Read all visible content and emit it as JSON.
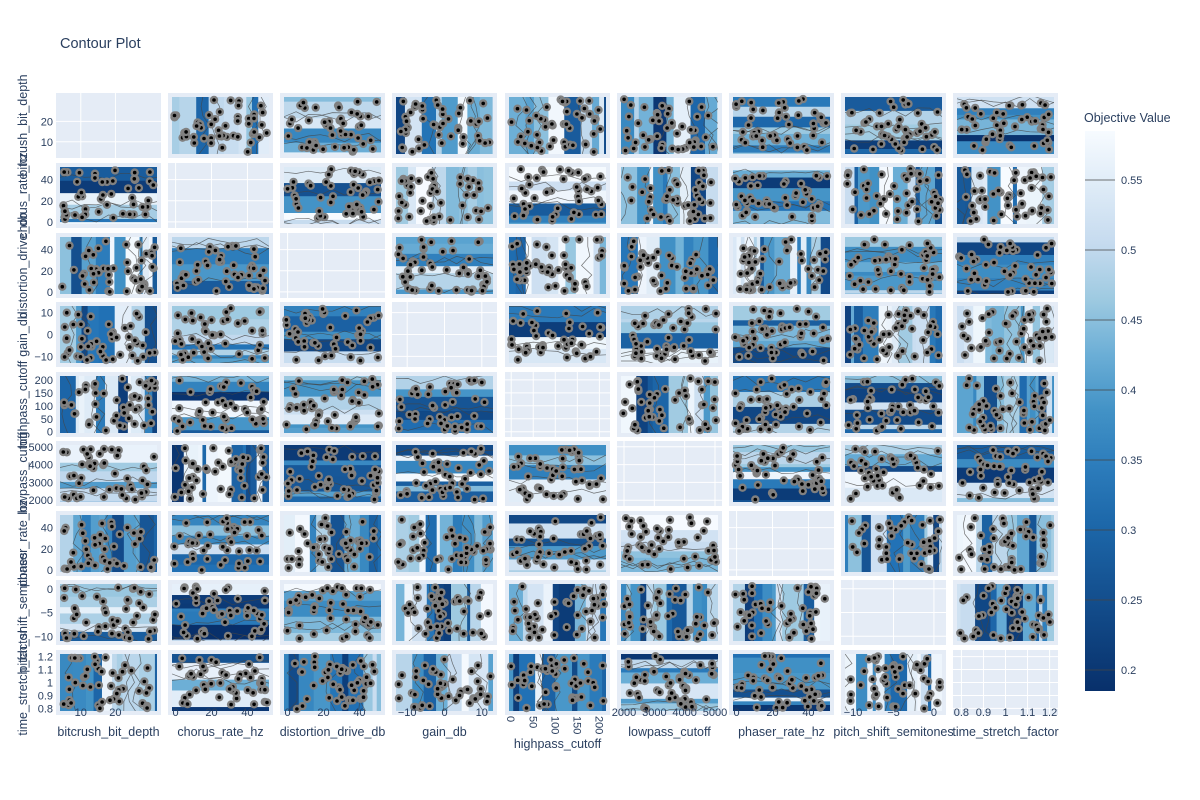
{
  "chart_data": {
    "type": "contour",
    "title": "Contour Plot",
    "params": [
      {
        "name": "bitcrush_bit_depth",
        "range": [
          4,
          32
        ],
        "xticks": [
          "10",
          "20"
        ],
        "xtick_values": [
          10,
          20
        ],
        "yticks": [
          "10",
          "20"
        ],
        "ytick_values": [
          10,
          20
        ]
      },
      {
        "name": "chorus_rate_hz",
        "range": [
          -2,
          52
        ],
        "xticks": [
          "0",
          "20",
          "40"
        ],
        "xtick_values": [
          0,
          20,
          40
        ],
        "yticks": [
          "0",
          "20",
          "40"
        ],
        "ytick_values": [
          0,
          20,
          40
        ]
      },
      {
        "name": "distortion_drive_db",
        "range": [
          -2,
          52
        ],
        "xticks": [
          "0",
          "20",
          "40"
        ],
        "xtick_values": [
          0,
          20,
          40
        ],
        "yticks": [
          "0",
          "20",
          "40"
        ],
        "ytick_values": [
          0,
          20,
          40
        ]
      },
      {
        "name": "gain_db",
        "range": [
          -13,
          13
        ],
        "xticks": [
          "−10",
          "0",
          "10"
        ],
        "xtick_values": [
          -10,
          0,
          10
        ],
        "yticks": [
          "−10",
          "0",
          "10"
        ],
        "ytick_values": [
          -10,
          0,
          10
        ]
      },
      {
        "name": "highpass_cutoff",
        "range": [
          -5,
          215
        ],
        "xticks": [
          "0",
          "50",
          "100",
          "150",
          "200"
        ],
        "xtick_values": [
          0,
          50,
          100,
          150,
          200
        ],
        "yticks": [
          "0",
          "50",
          "100",
          "150",
          "200"
        ],
        "ytick_values": [
          0,
          50,
          100,
          150,
          200
        ]
      },
      {
        "name": "lowpass_cutoff",
        "range": [
          1900,
          5100
        ],
        "xticks": [
          "2000",
          "3000",
          "4000",
          "5000"
        ],
        "xtick_values": [
          2000,
          3000,
          4000,
          5000
        ],
        "yticks": [
          "2000",
          "3000",
          "4000",
          "5000"
        ],
        "ytick_values": [
          2000,
          3000,
          4000,
          5000
        ]
      },
      {
        "name": "phaser_rate_hz",
        "range": [
          -2,
          52
        ],
        "xticks": [
          "0",
          "20",
          "40"
        ],
        "xtick_values": [
          0,
          20,
          40
        ],
        "yticks": [
          "0",
          "20",
          "40"
        ],
        "ytick_values": [
          0,
          20,
          40
        ]
      },
      {
        "name": "pitch_shift_semitones",
        "range": [
          -11,
          1
        ],
        "xticks": [
          "−10",
          "−5",
          "0"
        ],
        "xtick_values": [
          -10,
          -5,
          0
        ],
        "yticks": [
          "−10",
          "−5",
          "0"
        ],
        "ytick_values": [
          -10,
          -5,
          0
        ]
      },
      {
        "name": "time_stretch_factor",
        "range": [
          0.78,
          1.22
        ],
        "xticks": [
          "0.8",
          "0.9",
          "1",
          "1.1",
          "1.2"
        ],
        "xtick_values": [
          0.8,
          0.9,
          1.0,
          1.1,
          1.2
        ],
        "yticks": [
          "0.8",
          "0.9",
          "1",
          "1.1",
          "1.2"
        ],
        "ytick_values": [
          0.8,
          0.9,
          1.0,
          1.1,
          1.2
        ]
      }
    ],
    "colorbar": {
      "title": "Objective Value",
      "colorscale": "Blues",
      "range": [
        0.185,
        0.585
      ],
      "ticks": [
        "0.2",
        "0.25",
        "0.3",
        "0.35",
        "0.4",
        "0.45",
        "0.5",
        "0.55"
      ],
      "tick_values": [
        0.2,
        0.25,
        0.3,
        0.35,
        0.4,
        0.45,
        0.5,
        0.55
      ]
    },
    "colors": {
      "panel_bg": "#e5ecf6",
      "grid": "#ffffff",
      "marker_outer": "#808080",
      "marker_inner": "#000000",
      "contour_line": "#444444"
    }
  }
}
